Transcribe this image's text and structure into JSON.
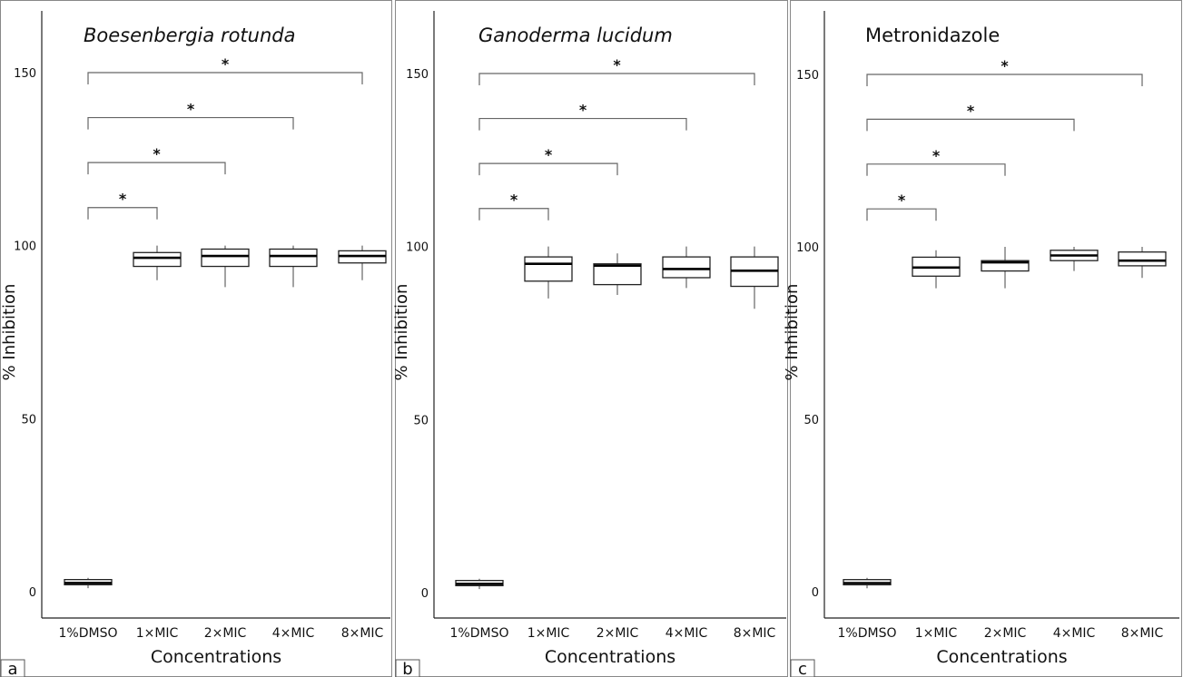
{
  "chart_data": [
    {
      "type": "box",
      "panel_letter": "a",
      "title": "Boesenbergia rotunda",
      "title_italic": true,
      "xlabel": "Concentrations",
      "ylabel": "% Inhibition",
      "ylim": [
        0,
        150
      ],
      "yticks": [
        0,
        50,
        100,
        150
      ],
      "categories": [
        "1%DMSO",
        "1×MIC",
        "2×MIC",
        "4×MIC",
        "8×MIC"
      ],
      "boxes": [
        {
          "min": 1,
          "q1": 2,
          "median": 2.5,
          "q3": 3.5,
          "max": 4
        },
        {
          "min": 90,
          "q1": 94,
          "median": 96.5,
          "q3": 98,
          "max": 100
        },
        {
          "min": 88,
          "q1": 94,
          "median": 97,
          "q3": 99,
          "max": 100
        },
        {
          "min": 88,
          "q1": 94,
          "median": 97,
          "q3": 99,
          "max": 100
        },
        {
          "min": 90,
          "q1": 95,
          "median": 97,
          "q3": 98.5,
          "max": 100
        }
      ],
      "significance": [
        {
          "from": "1%DMSO",
          "to": "8×MIC",
          "label": "*",
          "y": 150
        },
        {
          "from": "1%DMSO",
          "to": "4×MIC",
          "label": "*",
          "y": 137
        },
        {
          "from": "1%DMSO",
          "to": "2×MIC",
          "label": "*",
          "y": 124
        },
        {
          "from": "1%DMSO",
          "to": "1×MIC",
          "label": "*",
          "y": 111
        }
      ]
    },
    {
      "type": "box",
      "panel_letter": "b",
      "title": "Ganoderma lucidum",
      "title_italic": true,
      "xlabel": "Concentrations",
      "ylabel": "% Inhibition",
      "ylim": [
        0,
        150
      ],
      "yticks": [
        0,
        50,
        100,
        150
      ],
      "categories": [
        "1%DMSO",
        "1×MIC",
        "2×MIC",
        "4×MIC",
        "8×MIC"
      ],
      "boxes": [
        {
          "min": 1,
          "q1": 2,
          "median": 2.5,
          "q3": 3.5,
          "max": 4
        },
        {
          "min": 85,
          "q1": 90,
          "median": 95,
          "q3": 97,
          "max": 100
        },
        {
          "min": 86,
          "q1": 89,
          "median": 94.5,
          "q3": 95,
          "max": 98
        },
        {
          "min": 88,
          "q1": 91,
          "median": 93.5,
          "q3": 97,
          "max": 100
        },
        {
          "min": 82,
          "q1": 88.5,
          "median": 93,
          "q3": 97,
          "max": 100
        }
      ],
      "significance": [
        {
          "from": "1%DMSO",
          "to": "8×MIC",
          "label": "*",
          "y": 150
        },
        {
          "from": "1%DMSO",
          "to": "4×MIC",
          "label": "*",
          "y": 137
        },
        {
          "from": "1%DMSO",
          "to": "2×MIC",
          "label": "*",
          "y": 124
        },
        {
          "from": "1%DMSO",
          "to": "1×MIC",
          "label": "*",
          "y": 111
        }
      ]
    },
    {
      "type": "box",
      "panel_letter": "c",
      "title": "Metronidazole",
      "title_italic": false,
      "xlabel": "Concentrations",
      "ylabel": "% Inhibition",
      "ylim": [
        0,
        150
      ],
      "yticks": [
        0,
        50,
        100,
        150
      ],
      "categories": [
        "1%DMSO",
        "1×MIC",
        "2×MIC",
        "4×MIC",
        "8×MIC"
      ],
      "boxes": [
        {
          "min": 1,
          "q1": 2,
          "median": 2.5,
          "q3": 3.5,
          "max": 4
        },
        {
          "min": 88,
          "q1": 91.5,
          "median": 94,
          "q3": 97,
          "max": 99
        },
        {
          "min": 88,
          "q1": 93,
          "median": 95.5,
          "q3": 96,
          "max": 100
        },
        {
          "min": 93,
          "q1": 96,
          "median": 97.5,
          "q3": 99,
          "max": 100
        },
        {
          "min": 91,
          "q1": 94.5,
          "median": 96,
          "q3": 98.5,
          "max": 100
        }
      ],
      "significance": [
        {
          "from": "1%DMSO",
          "to": "8×MIC",
          "label": "*",
          "y": 150
        },
        {
          "from": "1%DMSO",
          "to": "4×MIC",
          "label": "*",
          "y": 137
        },
        {
          "from": "1%DMSO",
          "to": "2×MIC",
          "label": "*",
          "y": 124
        },
        {
          "from": "1%DMSO",
          "to": "1×MIC",
          "label": "*",
          "y": 111
        }
      ]
    }
  ]
}
